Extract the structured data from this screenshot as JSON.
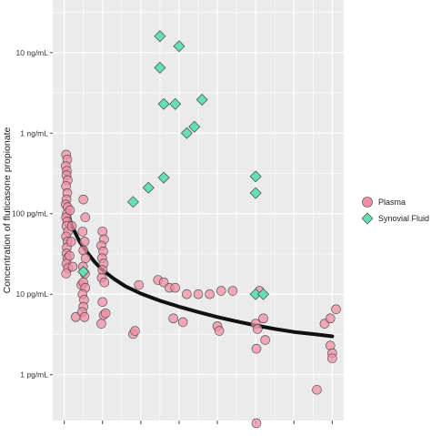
{
  "chart_data": {
    "type": "scatter",
    "ylabel": "Concentration of fluticasone propionate",
    "y_scale": "log",
    "ylim_pg_per_ml": [
      0.27,
      45000
    ],
    "xlim": [
      -0.3,
      7.3
    ],
    "y_ticks": [
      {
        "label": "1 pg/mL",
        "value": 1
      },
      {
        "label": "10 pg/mL",
        "value": 10
      },
      {
        "label": "100 pg/mL",
        "value": 100
      },
      {
        "label": "1 ng/mL",
        "value": 1000
      },
      {
        "label": "10 ng/mL",
        "value": 10000
      }
    ],
    "x_ticks": [
      0,
      1,
      2,
      3,
      4,
      5,
      6,
      7
    ],
    "grid": true,
    "legend_position": "right",
    "colors": {
      "panel": "#ebebeb",
      "grid": "#ffffff",
      "plasma": "#f08fa4",
      "synovial": "#66e0b3",
      "marker_stroke": "#444444",
      "fit_line": "#111111"
    },
    "series": [
      {
        "name": "Plasma",
        "marker": "circle",
        "points": [
          [
            0.05,
            540
          ],
          [
            0.08,
            470
          ],
          [
            0.04,
            390
          ],
          [
            0.07,
            340
          ],
          [
            0.06,
            300
          ],
          [
            0.09,
            260
          ],
          [
            0.05,
            220
          ],
          [
            0.08,
            180
          ],
          [
            0.06,
            150
          ],
          [
            0.04,
            130
          ],
          [
            0.09,
            120
          ],
          [
            0.07,
            100
          ],
          [
            0.05,
            90
          ],
          [
            0.08,
            80
          ],
          [
            0.06,
            70
          ],
          [
            0.1,
            60
          ],
          [
            0.05,
            52
          ],
          [
            0.09,
            45
          ],
          [
            0.07,
            38
          ],
          [
            0.06,
            32
          ],
          [
            0.08,
            28
          ],
          [
            0.06,
            24
          ],
          [
            0.1,
            21
          ],
          [
            0.05,
            18
          ],
          [
            0.15,
            110
          ],
          [
            0.2,
            70
          ],
          [
            0.18,
            45
          ],
          [
            0.14,
            30
          ],
          [
            0.22,
            22
          ],
          [
            0.3,
            5.2
          ],
          [
            0.45,
            13
          ],
          [
            0.5,
            14
          ],
          [
            0.55,
            12
          ],
          [
            0.48,
            10
          ],
          [
            0.52,
            8.5
          ],
          [
            0.5,
            7
          ],
          [
            0.47,
            6
          ],
          [
            0.53,
            5.2
          ],
          [
            0.5,
            150
          ],
          [
            0.55,
            90
          ],
          [
            0.48,
            60
          ],
          [
            0.53,
            45
          ],
          [
            0.5,
            35
          ],
          [
            0.56,
            28
          ],
          [
            0.49,
            22
          ],
          [
            0.54,
            18
          ],
          [
            1.0,
            60
          ],
          [
            1.04,
            48
          ],
          [
            0.97,
            40
          ],
          [
            1.02,
            34
          ],
          [
            0.99,
            28
          ],
          [
            1.03,
            24
          ],
          [
            1.0,
            20
          ],
          [
            0.98,
            16
          ],
          [
            1.05,
            14
          ],
          [
            1.0,
            8
          ],
          [
            1.03,
            5.5
          ],
          [
            0.97,
            4.3
          ],
          [
            1.08,
            5.8
          ],
          [
            1.8,
            3.2
          ],
          [
            1.85,
            3.5
          ],
          [
            1.95,
            13
          ],
          [
            2.45,
            15
          ],
          [
            2.6,
            14
          ],
          [
            2.75,
            12
          ],
          [
            2.9,
            12
          ],
          [
            3.2,
            10
          ],
          [
            3.5,
            10
          ],
          [
            3.8,
            10
          ],
          [
            4.1,
            11
          ],
          [
            4.4,
            11
          ],
          [
            2.85,
            5
          ],
          [
            3.1,
            4.5
          ],
          [
            4.0,
            4
          ],
          [
            4.05,
            3.5
          ],
          [
            5.0,
            4.3
          ],
          [
            5.05,
            3.7
          ],
          [
            5.02,
            2.1
          ],
          [
            5.25,
            2.7
          ],
          [
            5.2,
            5
          ],
          [
            5.1,
            11
          ],
          [
            5.02,
            0.25
          ],
          [
            6.8,
            4.3
          ],
          [
            6.95,
            5
          ],
          [
            7.1,
            6.5
          ],
          [
            6.95,
            2.3
          ],
          [
            7.0,
            1.85
          ],
          [
            7.0,
            1.6
          ],
          [
            6.6,
            0.65
          ]
        ]
      },
      {
        "name": "Synovial Fluid",
        "marker": "diamond",
        "points": [
          [
            0.5,
            19
          ],
          [
            1.8,
            140
          ],
          [
            2.2,
            210
          ],
          [
            2.5,
            16000
          ],
          [
            2.5,
            6500
          ],
          [
            2.6,
            2300
          ],
          [
            2.6,
            280
          ],
          [
            2.9,
            2300
          ],
          [
            3.0,
            12000
          ],
          [
            3.2,
            1000
          ],
          [
            3.4,
            1200
          ],
          [
            3.6,
            2600
          ],
          [
            5.0,
            290
          ],
          [
            5.0,
            180
          ],
          [
            5.0,
            10
          ],
          [
            5.2,
            10
          ]
        ]
      }
    ],
    "fit_curve": {
      "name": "fit",
      "points": [
        [
          0.08,
          110
        ],
        [
          0.2,
          70
        ],
        [
          0.4,
          45
        ],
        [
          0.6,
          33
        ],
        [
          0.8,
          25
        ],
        [
          1.0,
          20
        ],
        [
          1.3,
          15.5
        ],
        [
          1.6,
          12.5
        ],
        [
          2.0,
          10.2
        ],
        [
          2.5,
          8.3
        ],
        [
          3.0,
          7
        ],
        [
          3.5,
          6
        ],
        [
          4.0,
          5.2
        ],
        [
          4.5,
          4.6
        ],
        [
          5.0,
          4.1
        ],
        [
          5.5,
          3.7
        ],
        [
          6.0,
          3.4
        ],
        [
          6.5,
          3.2
        ],
        [
          7.0,
          3.0
        ]
      ]
    }
  }
}
